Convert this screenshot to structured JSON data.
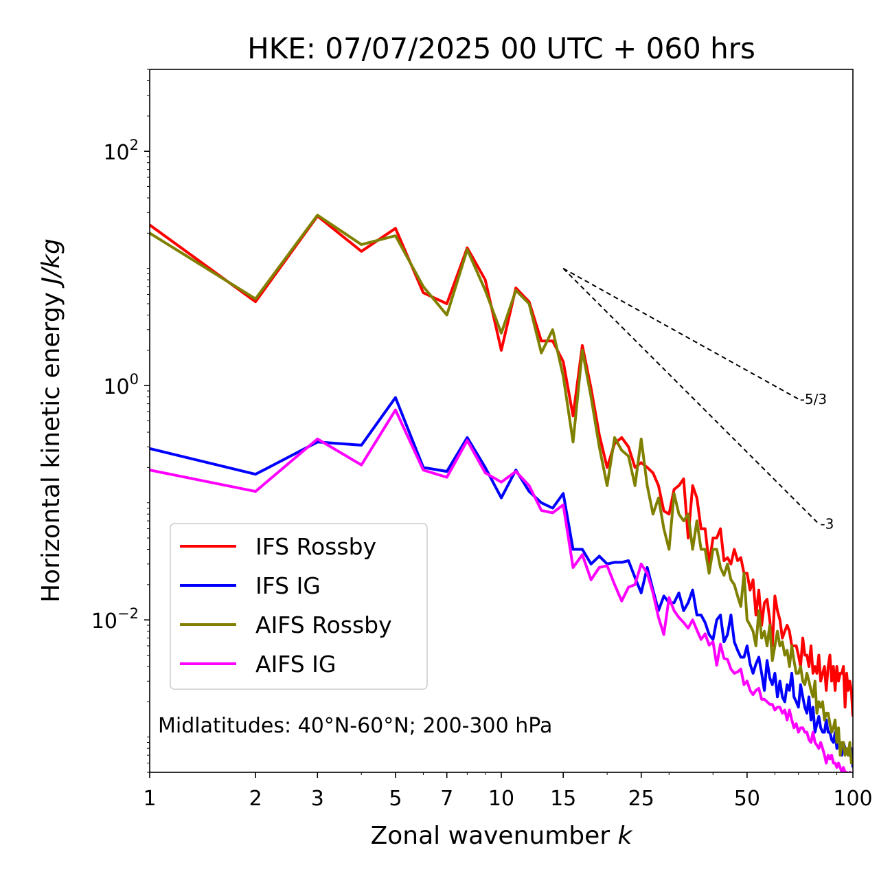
{
  "chart_data": {
    "type": "line",
    "title": "HKE: 07/07/2025 00 UTC + 060 hrs",
    "xlabel": "Zonal wavenumber",
    "xlabel_var": "k",
    "ylabel": "Horizontal kinetic energy",
    "ylabel_unit": "J/kg",
    "xscale": "log",
    "yscale": "log",
    "xlim": [
      1,
      100
    ],
    "ylim": [
      0.0005,
      500
    ],
    "x_ticks": [
      1,
      2,
      3,
      5,
      7,
      10,
      15,
      25,
      50,
      100
    ],
    "x_tick_labels": [
      "1",
      "2",
      "3",
      "5",
      "7",
      "10",
      "15",
      "25",
      "50",
      "100"
    ],
    "y_ticks": [
      {
        "value": 100,
        "base": "10",
        "exp": "2"
      },
      {
        "value": 1,
        "base": "10",
        "exp": "0"
      },
      {
        "value": 0.01,
        "base": "10",
        "exp": "−2"
      }
    ],
    "annotation": "Midlatitudes: 40°N-60°N; 200-300 hPa",
    "legend_position": "lower-left",
    "reference_slopes": [
      {
        "label": "-5/3",
        "slope": -1.6667,
        "x0": 15,
        "y0": 10,
        "x1": 70
      },
      {
        "label": "-3",
        "slope": -3,
        "x0": 15,
        "y0": 10,
        "x1": 80
      }
    ],
    "series": [
      {
        "name": "IFS Rossby",
        "color": "#ff0000",
        "x": [
          1,
          2,
          3,
          4,
          5,
          6,
          7,
          8,
          9,
          10,
          11,
          12,
          13,
          14,
          15,
          16,
          17,
          18,
          19,
          20,
          21,
          22,
          23,
          24,
          25,
          26,
          27,
          28,
          29,
          30,
          31,
          32,
          33,
          34,
          35,
          36,
          37,
          38,
          39,
          40,
          41,
          42,
          43,
          44,
          45,
          46,
          47,
          48,
          49,
          50,
          51,
          52,
          53,
          54,
          55,
          56,
          57,
          58,
          59,
          60,
          61,
          62,
          63,
          64,
          65,
          66,
          67,
          68,
          69,
          70,
          71,
          72,
          73,
          74,
          75,
          76,
          77,
          78,
          79,
          80,
          81,
          82,
          83,
          84,
          85,
          86,
          87,
          88,
          89,
          90,
          91,
          92,
          93,
          94,
          95,
          96,
          97,
          98,
          99,
          100
        ],
        "y": [
          23.5,
          5.2,
          28.0,
          14.0,
          22.0,
          6.2,
          5.0,
          15.0,
          8.0,
          2.0,
          6.8,
          5.2,
          2.4,
          2.4,
          1.6,
          0.55,
          2.2,
          0.95,
          0.38,
          0.2,
          0.32,
          0.36,
          0.3,
          0.2,
          0.22,
          0.2,
          0.18,
          0.14,
          0.085,
          0.08,
          0.13,
          0.14,
          0.16,
          0.05,
          0.14,
          0.11,
          0.06,
          0.06,
          0.03,
          0.05,
          0.05,
          0.06,
          0.032,
          0.034,
          0.03,
          0.04,
          0.032,
          0.034,
          0.025,
          0.025,
          0.018,
          0.022,
          0.011,
          0.018,
          0.009,
          0.014,
          0.015,
          0.01,
          0.006,
          0.016,
          0.012,
          0.01,
          0.007,
          0.008,
          0.009,
          0.008,
          0.006,
          0.006,
          0.006,
          0.005,
          0.004,
          0.007,
          0.005,
          0.005,
          0.004,
          0.006,
          0.0035,
          0.004,
          0.0035,
          0.005,
          0.003,
          0.0035,
          0.004,
          0.0025,
          0.004,
          0.005,
          0.003,
          0.004,
          0.0025,
          0.004,
          0.003,
          0.0035,
          0.0035,
          0.004,
          0.0018,
          0.0035,
          0.0025,
          0.003,
          0.0025,
          0.0015
        ]
      },
      {
        "name": "IFS IG",
        "color": "#0000ff",
        "x": [
          1,
          2,
          3,
          4,
          5,
          6,
          7,
          8,
          9,
          10,
          11,
          12,
          13,
          14,
          15,
          16,
          17,
          18,
          19,
          20,
          21,
          22,
          23,
          24,
          25,
          26,
          27,
          28,
          29,
          30,
          31,
          32,
          33,
          34,
          35,
          36,
          37,
          38,
          39,
          40,
          41,
          42,
          43,
          44,
          45,
          46,
          47,
          48,
          49,
          50,
          51,
          52,
          53,
          54,
          55,
          56,
          57,
          58,
          59,
          60,
          61,
          62,
          63,
          64,
          65,
          66,
          67,
          68,
          69,
          70,
          71,
          72,
          73,
          74,
          75,
          76,
          77,
          78,
          79,
          80,
          81,
          82,
          83,
          84,
          85,
          86,
          87,
          88,
          89,
          90,
          91,
          92,
          93,
          94,
          95,
          96,
          97,
          98,
          99,
          100
        ],
        "y": [
          0.29,
          0.175,
          0.33,
          0.31,
          0.79,
          0.2,
          0.185,
          0.36,
          0.2,
          0.11,
          0.19,
          0.125,
          0.1,
          0.09,
          0.12,
          0.04,
          0.04,
          0.03,
          0.035,
          0.03,
          0.031,
          0.031,
          0.032,
          0.023,
          0.017,
          0.028,
          0.018,
          0.012,
          0.016,
          0.014,
          0.014,
          0.017,
          0.012,
          0.014,
          0.018,
          0.011,
          0.011,
          0.0095,
          0.0075,
          0.0068,
          0.01,
          0.011,
          0.0065,
          0.0075,
          0.011,
          0.0065,
          0.0055,
          0.0048,
          0.0048,
          0.006,
          0.0042,
          0.0035,
          0.0042,
          0.0048,
          0.0035,
          0.0025,
          0.0045,
          0.0032,
          0.0028,
          0.0035,
          0.0022,
          0.003,
          0.0022,
          0.002,
          0.0028,
          0.0025,
          0.0035,
          0.0022,
          0.002,
          0.0018,
          0.0028,
          0.0022,
          0.0018,
          0.0016,
          0.0022,
          0.0014,
          0.0018,
          0.0011,
          0.0013,
          0.0015,
          0.0012,
          0.0011,
          0.0011,
          0.0014,
          0.0011,
          0.0011,
          0.00095,
          0.0009,
          0.0011,
          0.0008,
          0.0009,
          0.00085,
          0.0007,
          0.0009,
          0.0008,
          0.00075,
          0.0007,
          0.0007,
          0.0008,
          0.00055
        ]
      },
      {
        "name": "AIFS Rossby",
        "color": "#808000",
        "x": [
          1,
          2,
          3,
          4,
          5,
          6,
          7,
          8,
          9,
          10,
          11,
          12,
          13,
          14,
          15,
          16,
          17,
          18,
          19,
          20,
          21,
          22,
          23,
          24,
          25,
          26,
          27,
          28,
          29,
          30,
          31,
          32,
          33,
          34,
          35,
          36,
          37,
          38,
          39,
          40,
          41,
          42,
          43,
          44,
          45,
          46,
          47,
          48,
          49,
          50,
          51,
          52,
          53,
          54,
          55,
          56,
          57,
          58,
          59,
          60,
          61,
          62,
          63,
          64,
          65,
          66,
          67,
          68,
          69,
          70,
          71,
          72,
          73,
          74,
          75,
          76,
          77,
          78,
          79,
          80,
          81,
          82,
          83,
          84,
          85,
          86,
          87,
          88,
          89,
          90,
          91,
          92,
          93,
          94,
          95,
          96,
          97,
          98,
          99,
          100
        ],
        "y": [
          20.0,
          5.5,
          28.5,
          16.0,
          19.0,
          7.0,
          4.0,
          14.5,
          6.5,
          2.8,
          6.5,
          5.0,
          1.9,
          3.0,
          1.2,
          0.33,
          2.0,
          0.8,
          0.3,
          0.14,
          0.36,
          0.28,
          0.25,
          0.14,
          0.35,
          0.14,
          0.08,
          0.11,
          0.06,
          0.04,
          0.12,
          0.08,
          0.07,
          0.08,
          0.04,
          0.07,
          0.04,
          0.04,
          0.025,
          0.04,
          0.04,
          0.028,
          0.024,
          0.03,
          0.022,
          0.02,
          0.016,
          0.013,
          0.025,
          0.01,
          0.009,
          0.008,
          0.006,
          0.012,
          0.007,
          0.008,
          0.006,
          0.009,
          0.0045,
          0.006,
          0.008,
          0.006,
          0.0065,
          0.005,
          0.0055,
          0.004,
          0.006,
          0.0045,
          0.0035,
          0.0035,
          0.004,
          0.003,
          0.0028,
          0.0035,
          0.003,
          0.0025,
          0.0022,
          0.003,
          0.0016,
          0.002,
          0.0018,
          0.002,
          0.0014,
          0.0016,
          0.0016,
          0.0013,
          0.0011,
          0.0012,
          0.0014,
          0.0009,
          0.0012,
          0.0007,
          0.0009,
          0.0009,
          0.0007,
          0.0008,
          0.0007,
          0.0009,
          0.0006,
          0.0006
        ]
      },
      {
        "name": "AIFS IG",
        "color": "#ff00ff",
        "x": [
          1,
          2,
          3,
          4,
          5,
          6,
          7,
          8,
          9,
          10,
          11,
          12,
          13,
          14,
          15,
          16,
          17,
          18,
          19,
          20,
          21,
          22,
          23,
          24,
          25,
          26,
          27,
          28,
          29,
          30,
          31,
          32,
          33,
          34,
          35,
          36,
          37,
          38,
          39,
          40,
          41,
          42,
          43,
          44,
          45,
          46,
          47,
          48,
          49,
          50,
          51,
          52,
          53,
          54,
          55,
          56,
          57,
          58,
          59,
          60,
          61,
          62,
          63,
          64,
          65,
          66,
          67,
          68,
          69,
          70,
          71,
          72,
          73,
          74,
          75,
          76,
          77,
          78,
          79,
          80,
          81,
          82,
          83,
          84,
          85,
          86,
          87,
          88,
          89,
          90,
          91,
          92,
          93,
          94,
          95,
          96,
          97,
          98,
          99,
          100
        ],
        "y": [
          0.19,
          0.125,
          0.35,
          0.21,
          0.62,
          0.19,
          0.165,
          0.34,
          0.18,
          0.15,
          0.185,
          0.14,
          0.086,
          0.082,
          0.096,
          0.028,
          0.036,
          0.022,
          0.028,
          0.029,
          0.02,
          0.0145,
          0.019,
          0.02,
          0.03,
          0.025,
          0.017,
          0.0105,
          0.0075,
          0.0155,
          0.012,
          0.0105,
          0.0095,
          0.0085,
          0.01,
          0.0082,
          0.0068,
          0.0076,
          0.0061,
          0.0065,
          0.0041,
          0.0062,
          0.0047,
          0.0046,
          0.0038,
          0.0035,
          0.0036,
          0.0038,
          0.0028,
          0.003,
          0.0025,
          0.0023,
          0.0025,
          0.0026,
          0.0021,
          0.0021,
          0.002,
          0.0019,
          0.0019,
          0.0017,
          0.0018,
          0.0018,
          0.0016,
          0.0017,
          0.0014,
          0.0017,
          0.0014,
          0.0012,
          0.0013,
          0.0011,
          0.0012,
          0.0012,
          0.0011,
          0.0011,
          0.00095,
          0.0009,
          0.0011,
          0.0009,
          0.00085,
          0.0008,
          0.0009,
          0.0008,
          0.0007,
          0.0006,
          0.0007,
          0.00065,
          0.0007,
          0.0006,
          0.0006,
          0.00055,
          0.0006,
          0.00055,
          0.0005,
          0.00055,
          0.0005,
          0.0005,
          0.00048,
          0.0005,
          0.00045,
          0.0004
        ]
      }
    ]
  }
}
